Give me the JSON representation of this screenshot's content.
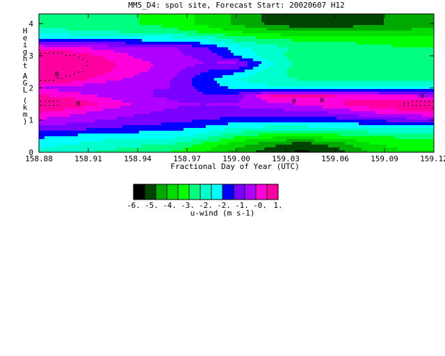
{
  "chart_data": {
    "type": "heatmap",
    "title": "MM5_D4: spol site,  Forecast Start: 20020607 H12",
    "xlabel": "Fractional Day of Year (UTC)",
    "ylabel": "Height AGL (km)",
    "xlim": [
      158.88,
      159.12
    ],
    "ylim": [
      0,
      4.3
    ],
    "x_ticks": [
      "158.88",
      "158.91",
      "158.94",
      "158.97",
      "159.00",
      "159.03",
      "159.06",
      "159.09",
      "159.12"
    ],
    "y_ticks": [
      "0",
      "1",
      "2",
      "3",
      "4"
    ],
    "x": [
      158.88,
      158.9,
      158.92,
      158.94,
      158.96,
      158.98,
      159.0,
      159.02,
      159.04,
      159.06,
      159.08,
      159.1,
      159.12
    ],
    "y": [
      0,
      0.25,
      0.5,
      0.75,
      1.0,
      1.25,
      1.5,
      1.75,
      2.0,
      2.25,
      2.5,
      2.75,
      3.0,
      3.25,
      3.5,
      3.75,
      4.0,
      4.3
    ],
    "values": [
      [
        -3.2,
        -3.4,
        -3.6,
        -3.8,
        -4.0,
        -4.5,
        -5.2,
        -5.8,
        -6.1,
        -5.8,
        -5.0,
        -4.6,
        -4.6
      ],
      [
        -2.8,
        -3.0,
        -3.2,
        -3.4,
        -3.5,
        -4.1,
        -4.8,
        -5.3,
        -5.8,
        -5.3,
        -4.6,
        -4.3,
        -4.3
      ],
      [
        -2.4,
        -2.6,
        -2.8,
        -2.8,
        -2.8,
        -3.2,
        -3.9,
        -4.3,
        -4.4,
        -4.2,
        -4.0,
        -3.9,
        -3.8
      ],
      [
        -1.6,
        -1.8,
        -2.0,
        -2.2,
        -2.3,
        -2.6,
        -3.0,
        -3.2,
        -3.2,
        -3.1,
        -3.0,
        -2.9,
        -2.9
      ],
      [
        -1.1,
        -1.3,
        -1.5,
        -1.7,
        -1.8,
        -2.0,
        -2.2,
        -2.3,
        -2.3,
        -2.2,
        -2.0,
        -1.8,
        -1.6
      ],
      [
        -0.4,
        -0.8,
        -1.2,
        -1.4,
        -1.6,
        -1.7,
        -1.7,
        -1.7,
        -1.6,
        -1.4,
        -1.0,
        -0.7,
        -0.4
      ],
      [
        0.2,
        0.0,
        -0.6,
        -1.1,
        -1.4,
        -1.5,
        -1.4,
        -1.2,
        -0.9,
        -0.6,
        -0.2,
        0.1,
        0.3
      ],
      [
        -0.4,
        -0.7,
        -1.1,
        -1.4,
        -1.6,
        -1.9,
        -1.8,
        -0.5,
        -0.3,
        -0.5,
        -0.7,
        -0.9,
        -1.1
      ],
      [
        -1.0,
        -1.3,
        -1.5,
        -1.5,
        -1.5,
        -2.2,
        -2.6,
        -2.8,
        -2.9,
        -2.9,
        -2.9,
        -2.9,
        -2.9
      ],
      [
        0.2,
        -0.2,
        -0.8,
        -1.2,
        -1.5,
        -2.3,
        -3.0,
        -3.4,
        -3.5,
        -3.5,
        -3.5,
        -3.5,
        -3.5
      ],
      [
        0.5,
        0.2,
        -0.4,
        -0.9,
        -1.3,
        -2.0,
        -2.4,
        -3.3,
        -3.7,
        -3.8,
        -3.9,
        -3.9,
        -3.9
      ],
      [
        0.5,
        0.3,
        -0.3,
        -0.8,
        -1.2,
        -1.5,
        -1.3,
        -2.8,
        -3.8,
        -4.0,
        -4.0,
        -4.0,
        -4.0
      ],
      [
        0.3,
        0.0,
        -0.6,
        -1.1,
        -1.4,
        -1.6,
        -2.5,
        -3.3,
        -3.8,
        -4.0,
        -4.0,
        -4.0,
        -4.0
      ],
      [
        -0.6,
        -0.9,
        -1.2,
        -1.3,
        -1.4,
        -1.9,
        -2.8,
        -3.3,
        -3.6,
        -3.8,
        -3.9,
        -4.0,
        -4.0
      ],
      [
        -2.3,
        -2.4,
        -2.5,
        -2.6,
        -2.7,
        -3.0,
        -3.6,
        -3.9,
        -4.1,
        -4.1,
        -4.1,
        -4.1,
        -4.1
      ],
      [
        -3.3,
        -3.4,
        -3.5,
        -3.6,
        -3.8,
        -4.1,
        -4.5,
        -4.8,
        -4.9,
        -4.9,
        -4.9,
        -4.9,
        -4.9
      ],
      [
        -3.7,
        -3.8,
        -3.9,
        -4.0,
        -4.2,
        -4.6,
        -5.1,
        -5.6,
        -6.0,
        -6.0,
        -5.7,
        -5.3,
        -5.1
      ],
      [
        -3.7,
        -3.8,
        -3.9,
        -4.0,
        -4.2,
        -4.6,
        -5.1,
        -5.6,
        -6.0,
        -6.0,
        -5.7,
        -5.3,
        -5.1
      ]
    ],
    "contour_labels": [
      "0",
      "0",
      "0",
      "0",
      "0"
    ],
    "levels": [
      -6.5,
      -6,
      -5.5,
      -5,
      -4.5,
      -4,
      -3.5,
      -3,
      -2.5,
      -2,
      -1.5,
      -1,
      -0.5,
      0,
      0.5,
      1
    ],
    "level_colors": [
      "#000000",
      "#004400",
      "#00aa00",
      "#00dd00",
      "#00ff00",
      "#00ff80",
      "#00ffcc",
      "#00ffff",
      "#0000ff",
      "#7a00ff",
      "#b000ff",
      "#ff00dd",
      "#ff00a0"
    ],
    "colorbar": {
      "ticks": [
        "-6.",
        "-5.",
        "-4.",
        "-3.",
        "-2.",
        "-2.",
        "-1.",
        "-0.",
        "1."
      ],
      "label": "u-wind (m s-1)"
    }
  }
}
